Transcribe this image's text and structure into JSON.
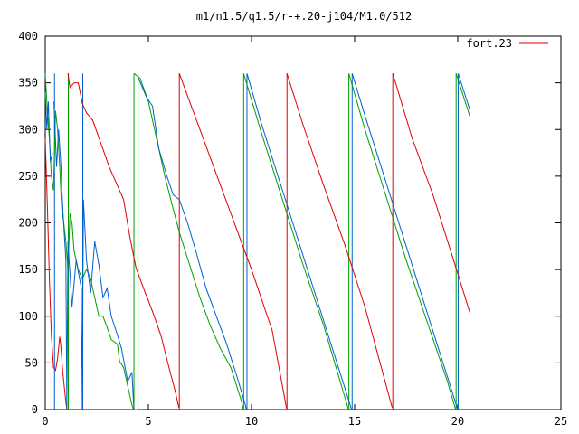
{
  "chart_data": {
    "type": "line",
    "title": "m1/n1.5/q1.5/r-+.20-j104/M1.0/512",
    "xlabel": "",
    "ylabel": "",
    "xlim": [
      0,
      25
    ],
    "ylim": [
      0,
      400
    ],
    "xticks": [
      0,
      5,
      10,
      15,
      20,
      25
    ],
    "yticks": [
      0,
      50,
      100,
      150,
      200,
      250,
      300,
      350,
      400
    ],
    "grid": false,
    "legend_position": "top-right",
    "series": [
      {
        "name": "fort.23",
        "color": "#e00000",
        "points": [
          [
            0.0,
            290
          ],
          [
            0.1,
            220
          ],
          [
            0.2,
            140
          ],
          [
            0.3,
            80
          ],
          [
            0.4,
            45
          ],
          [
            0.5,
            42
          ],
          [
            0.6,
            55
          ],
          [
            0.7,
            78
          ],
          [
            0.75,
            70
          ],
          [
            0.85,
            40
          ],
          [
            1.0,
            8
          ],
          [
            1.05,
            0
          ],
          [
            1.1,
            360
          ],
          [
            1.2,
            345
          ],
          [
            1.4,
            350
          ],
          [
            1.6,
            350
          ],
          [
            1.8,
            328
          ],
          [
            2.0,
            318
          ],
          [
            2.3,
            310
          ],
          [
            2.7,
            285
          ],
          [
            3.1,
            260
          ],
          [
            3.5,
            240
          ],
          [
            3.8,
            225
          ],
          [
            4.1,
            185
          ],
          [
            4.4,
            152
          ],
          [
            4.8,
            128
          ],
          [
            5.2,
            105
          ],
          [
            5.6,
            80
          ],
          [
            6.0,
            45
          ],
          [
            6.3,
            20
          ],
          [
            6.48,
            2
          ],
          [
            6.5,
            360
          ],
          [
            7.0,
            330
          ],
          [
            8.0,
            270
          ],
          [
            9.0,
            210
          ],
          [
            10.0,
            150
          ],
          [
            11.0,
            85
          ],
          [
            11.7,
            1
          ],
          [
            11.72,
            360
          ],
          [
            12.5,
            305
          ],
          [
            13.5,
            240
          ],
          [
            14.5,
            178
          ],
          [
            15.5,
            110
          ],
          [
            16.82,
            2
          ],
          [
            16.85,
            360
          ],
          [
            17.8,
            290
          ],
          [
            18.8,
            230
          ],
          [
            19.8,
            160
          ],
          [
            20.6,
            103
          ]
        ]
      },
      {
        "name": "",
        "color": "#00a000",
        "points": [
          [
            0.0,
            360
          ],
          [
            0.1,
            320
          ],
          [
            0.2,
            290
          ],
          [
            0.3,
            250
          ],
          [
            0.4,
            235
          ],
          [
            0.5,
            320
          ],
          [
            0.6,
            300
          ],
          [
            0.7,
            260
          ],
          [
            0.8,
            215
          ],
          [
            0.9,
            200
          ],
          [
            1.0,
            180
          ],
          [
            1.1,
            150
          ],
          [
            1.2,
            210
          ],
          [
            1.3,
            200
          ],
          [
            1.4,
            170
          ],
          [
            1.6,
            150
          ],
          [
            1.8,
            140
          ],
          [
            2.0,
            150
          ],
          [
            2.2,
            140
          ],
          [
            2.4,
            120
          ],
          [
            2.6,
            100
          ],
          [
            2.8,
            100
          ],
          [
            3.0,
            88
          ],
          [
            3.2,
            75
          ],
          [
            3.5,
            70
          ],
          [
            3.6,
            52
          ],
          [
            3.8,
            45
          ],
          [
            4.0,
            25
          ],
          [
            4.2,
            5
          ],
          [
            4.28,
            0
          ],
          [
            4.3,
            360
          ],
          [
            4.6,
            355
          ],
          [
            5.0,
            330
          ],
          [
            5.4,
            290
          ],
          [
            5.8,
            250
          ],
          [
            6.2,
            215
          ],
          [
            6.5,
            190
          ],
          [
            7.0,
            155
          ],
          [
            7.5,
            120
          ],
          [
            8.0,
            90
          ],
          [
            8.5,
            65
          ],
          [
            9.0,
            45
          ],
          [
            9.5,
            10
          ],
          [
            9.6,
            0
          ],
          [
            9.62,
            360
          ],
          [
            10.5,
            295
          ],
          [
            11.5,
            225
          ],
          [
            12.5,
            155
          ],
          [
            13.5,
            90
          ],
          [
            14.5,
            15
          ],
          [
            14.7,
            0
          ],
          [
            14.72,
            360
          ],
          [
            15.5,
            300
          ],
          [
            16.5,
            230
          ],
          [
            17.5,
            160
          ],
          [
            18.5,
            95
          ],
          [
            19.5,
            30
          ],
          [
            19.9,
            0
          ],
          [
            19.92,
            360
          ],
          [
            20.6,
            313
          ]
        ]
      },
      {
        "name": "",
        "color": "#0060d0",
        "points": [
          [
            0.0,
            340
          ],
          [
            0.08,
            300
          ],
          [
            0.15,
            330
          ],
          [
            0.25,
            265
          ],
          [
            0.35,
            275
          ],
          [
            0.4,
            0
          ],
          [
            0.42,
            330
          ],
          [
            0.55,
            260
          ],
          [
            0.65,
            300
          ],
          [
            0.75,
            265
          ],
          [
            0.85,
            215
          ],
          [
            1.0,
            160
          ],
          [
            1.05,
            0
          ],
          [
            1.1,
            180
          ],
          [
            1.3,
            110
          ],
          [
            1.5,
            160
          ],
          [
            1.75,
            130
          ],
          [
            1.8,
            0
          ],
          [
            1.85,
            225
          ],
          [
            2.0,
            160
          ],
          [
            2.2,
            125
          ],
          [
            2.4,
            180
          ],
          [
            2.6,
            155
          ],
          [
            2.8,
            120
          ],
          [
            3.0,
            130
          ],
          [
            3.2,
            100
          ],
          [
            3.5,
            80
          ],
          [
            3.7,
            65
          ],
          [
            4.0,
            30
          ],
          [
            4.2,
            40
          ],
          [
            4.3,
            0
          ],
          [
            4.5,
            0
          ],
          [
            4.52,
            355
          ],
          [
            4.9,
            335
          ],
          [
            5.2,
            325
          ],
          [
            5.5,
            280
          ],
          [
            5.9,
            250
          ],
          [
            6.2,
            230
          ],
          [
            6.5,
            225
          ],
          [
            6.9,
            200
          ],
          [
            7.3,
            170
          ],
          [
            7.8,
            130
          ],
          [
            8.3,
            100
          ],
          [
            8.8,
            70
          ],
          [
            9.3,
            35
          ],
          [
            9.7,
            5
          ],
          [
            9.75,
            0
          ],
          [
            9.78,
            360
          ],
          [
            10.5,
            305
          ],
          [
            11.5,
            235
          ],
          [
            12.5,
            165
          ],
          [
            13.5,
            95
          ],
          [
            14.5,
            25
          ],
          [
            14.85,
            0
          ],
          [
            14.88,
            360
          ],
          [
            15.5,
            315
          ],
          [
            16.5,
            245
          ],
          [
            17.5,
            175
          ],
          [
            18.5,
            105
          ],
          [
            19.5,
            35
          ],
          [
            20.0,
            0
          ],
          [
            20.02,
            360
          ],
          [
            20.6,
            320
          ]
        ]
      }
    ],
    "verticals": [
      {
        "color": "#0060d0",
        "x": 0.45
      },
      {
        "color": "#e00000",
        "x": 1.12
      },
      {
        "color": "#00a000",
        "x": 1.12
      },
      {
        "color": "#0060d0",
        "x": 1.82
      },
      {
        "color": "#00a000",
        "x": 4.3
      },
      {
        "color": "#00a000",
        "x": 4.5
      },
      {
        "color": "#e00000",
        "x": 6.5
      },
      {
        "color": "#00a000",
        "x": 9.62
      },
      {
        "color": "#0060d0",
        "x": 9.78
      },
      {
        "color": "#e00000",
        "x": 11.72
      },
      {
        "color": "#00a000",
        "x": 14.72
      },
      {
        "color": "#0060d0",
        "x": 14.88
      },
      {
        "color": "#e00000",
        "x": 16.85
      },
      {
        "color": "#00a000",
        "x": 19.92
      },
      {
        "color": "#0060d0",
        "x": 20.02
      }
    ]
  }
}
